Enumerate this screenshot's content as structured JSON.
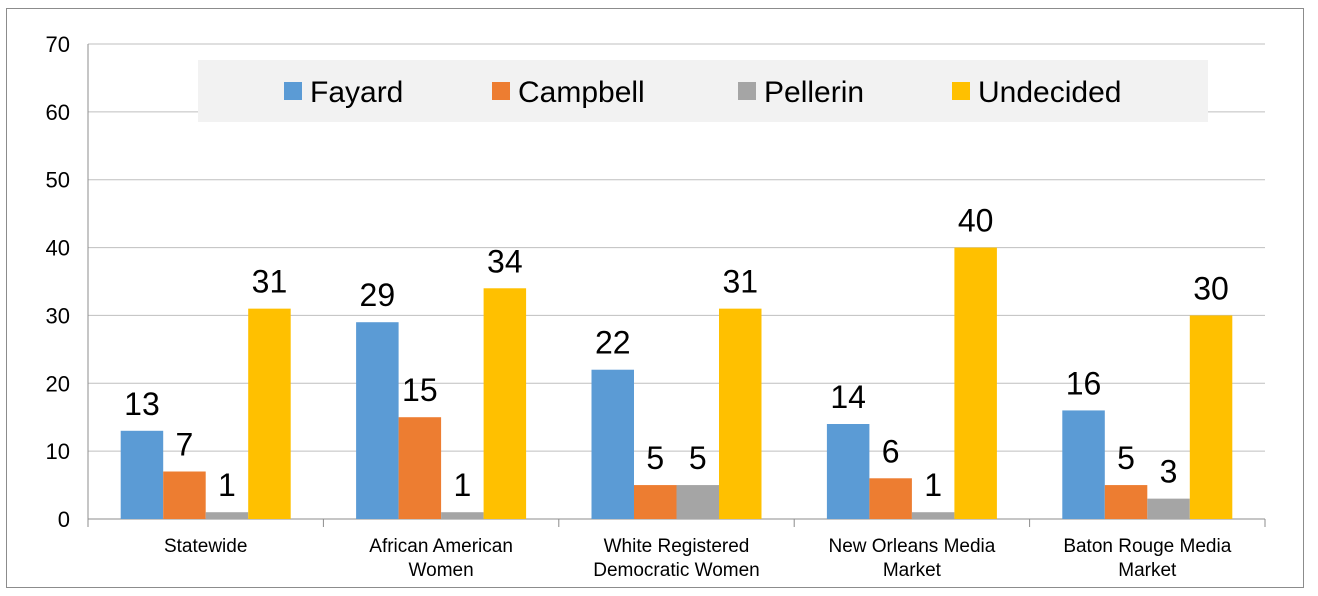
{
  "chart_data": {
    "type": "bar",
    "title": "",
    "xlabel": "",
    "ylabel": "",
    "ylim": [
      0,
      70
    ],
    "yticks": [
      "0",
      "10",
      "20",
      "30",
      "40",
      "50",
      "60",
      "70"
    ],
    "grid": true,
    "legend_position": "top",
    "categories": [
      [
        "Statewide"
      ],
      [
        "African American",
        "Women"
      ],
      [
        "White Registered",
        "Democratic Women"
      ],
      [
        "New Orleans Media",
        "Market"
      ],
      [
        "Baton Rouge Media",
        "Market"
      ]
    ],
    "series": [
      {
        "name": "Fayard",
        "color": "#5B9BD5",
        "values": [
          13,
          29,
          22,
          14,
          16
        ]
      },
      {
        "name": "Campbell",
        "color": "#ED7D31",
        "values": [
          7,
          15,
          5,
          6,
          5
        ]
      },
      {
        "name": "Pellerin",
        "color": "#A5A5A5",
        "values": [
          1,
          1,
          5,
          1,
          3
        ]
      },
      {
        "name": "Undecided",
        "color": "#FFC000",
        "values": [
          31,
          34,
          31,
          40,
          30
        ]
      }
    ]
  }
}
